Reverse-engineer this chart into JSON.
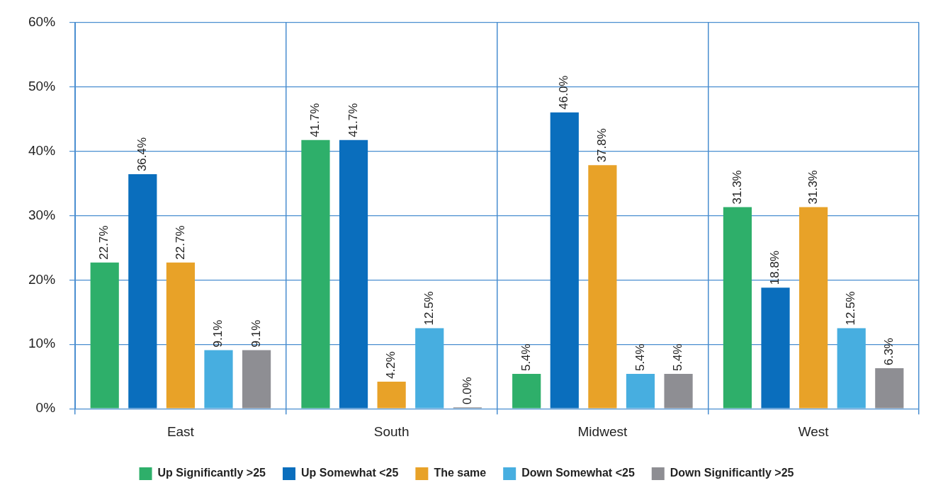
{
  "chart_data": {
    "type": "bar",
    "categories": [
      "East",
      "South",
      "Midwest",
      "West"
    ],
    "series": [
      {
        "name": "Up Significantly >25",
        "color": "#2eaf6a",
        "values": [
          22.7,
          41.7,
          5.4,
          31.3
        ],
        "value_labels": [
          "22.7%",
          "41.7%",
          "5.4%",
          "31.3%"
        ]
      },
      {
        "name": "Up Somewhat <25",
        "color": "#0a6ebd",
        "values": [
          36.4,
          41.7,
          46.0,
          18.8
        ],
        "value_labels": [
          "36.4%",
          "41.7%",
          "46.0%",
          "18.8%"
        ]
      },
      {
        "name": "The same",
        "color": "#e8a228",
        "values": [
          22.7,
          4.2,
          37.8,
          31.3
        ],
        "value_labels": [
          "22.7%",
          "4.2%",
          "37.8%",
          "31.3%"
        ]
      },
      {
        "name": "Down Somewhat <25",
        "color": "#47aee0",
        "values": [
          9.1,
          12.5,
          5.4,
          12.5
        ],
        "value_labels": [
          "9.1%",
          "12.5%",
          "5.4%",
          "12.5%"
        ]
      },
      {
        "name": "Down Significantly >25",
        "color": "#8e8e93",
        "values": [
          9.1,
          0.0,
          5.4,
          6.3
        ],
        "value_labels": [
          "9.1%",
          "0.0%",
          "5.4%",
          "6.3%"
        ]
      }
    ],
    "ylim": [
      0,
      60
    ],
    "yticks": [
      {
        "value": 0,
        "label": "0%"
      },
      {
        "value": 10,
        "label": "10%"
      },
      {
        "value": 20,
        "label": "20%"
      },
      {
        "value": 30,
        "label": "30%"
      },
      {
        "value": 40,
        "label": "40%"
      },
      {
        "value": 50,
        "label": "50%"
      },
      {
        "value": 60,
        "label": "60%"
      }
    ],
    "grid": true,
    "legend": "bottom"
  }
}
